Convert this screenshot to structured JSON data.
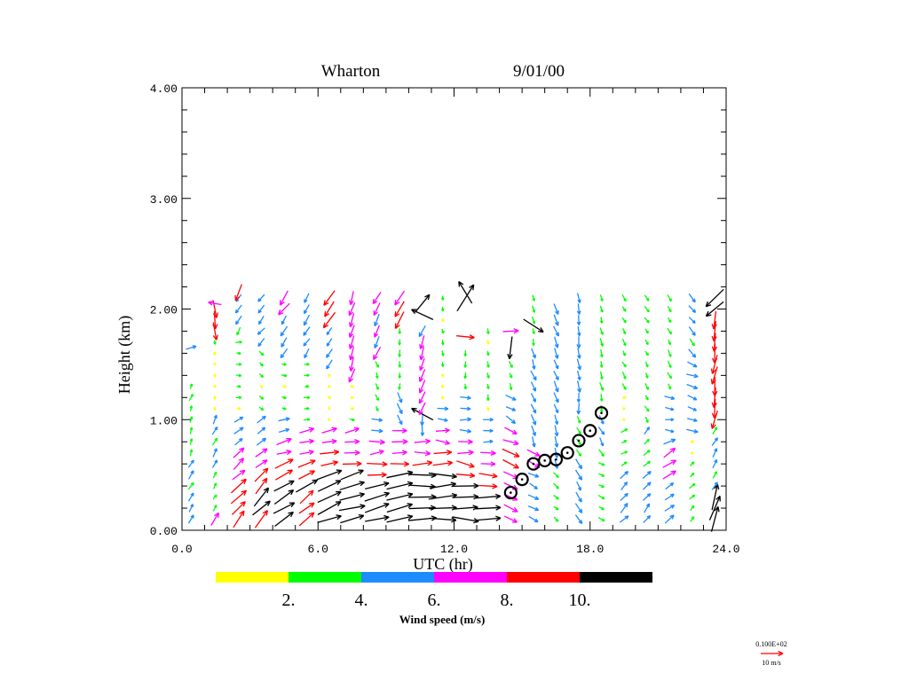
{
  "chart_data": {
    "type": "vector",
    "title": "Wharton",
    "date": "9/01/00",
    "xlabel": "UTC (hr)",
    "ylabel": "Height (km)",
    "xlim": [
      0,
      24
    ],
    "ylim": [
      0,
      4
    ],
    "xticks": [
      "0.0",
      "6.0",
      "12.0",
      "18.0",
      "24.0"
    ],
    "xtick_values": [
      0,
      6,
      12,
      18,
      24
    ],
    "yticks": [
      "0.00",
      "1.00",
      "2.00",
      "3.00",
      "4.00"
    ],
    "ytick_values": [
      0,
      1,
      2,
      3,
      4
    ],
    "colorbar": {
      "label": "Wind speed (m/s)",
      "tick_labels": [
        "2.",
        "4.",
        "6.",
        "8.",
        "10."
      ],
      "thresholds": [
        0,
        2,
        4,
        6,
        8,
        10
      ],
      "colors": [
        "#ffff00",
        "#00ff00",
        "#1e8cff",
        "#ff00ff",
        "#ff0000",
        "#000000"
      ]
    },
    "reference_vector": {
      "value_label": "0.100E+02",
      "units_label": "10 m/s",
      "speed": 10,
      "color": "#ff0000"
    },
    "profiles_format": "layers: [z_bottom_km, z_top_km, speed_m_s, direction_toward_deg]",
    "profiles": [
      {
        "t": 0.4,
        "layers": [
          [
            0.1,
            0.6,
            4.5,
            30
          ],
          [
            0.7,
            1.35,
            3,
            20
          ],
          [
            1.65,
            1.65,
            4.5,
            80
          ]
        ]
      },
      {
        "t": 1.45,
        "layers": [
          [
            0.1,
            0.1,
            7,
            30
          ],
          [
            0.2,
            0.5,
            3,
            30
          ],
          [
            0.6,
            1.0,
            4.5,
            25
          ],
          [
            1.1,
            1.7,
            1.5,
            180
          ],
          [
            1.8,
            2.0,
            8.5,
            170
          ],
          [
            2.05,
            2.05,
            6.5,
            285
          ]
        ]
      },
      {
        "t": 2.5,
        "layers": [
          [
            0.1,
            0.4,
            9,
            40
          ],
          [
            0.5,
            0.7,
            7,
            50
          ],
          [
            0.8,
            1.0,
            5,
            50
          ],
          [
            1.1,
            1.7,
            2.5,
            90
          ],
          [
            1.8,
            2.1,
            4.5,
            210
          ],
          [
            2.15,
            2.15,
            8.5,
            210
          ]
        ]
      },
      {
        "t": 3.5,
        "layers": [
          [
            0.1,
            0.3,
            10.5,
            45
          ],
          [
            0.4,
            0.5,
            9,
            45
          ],
          [
            0.6,
            0.7,
            7,
            60
          ],
          [
            0.8,
            1.0,
            5,
            60
          ],
          [
            1.1,
            1.6,
            2.5,
            130
          ],
          [
            1.7,
            2.15,
            5,
            220
          ]
        ]
      },
      {
        "t": 4.5,
        "layers": [
          [
            0.1,
            0.4,
            11,
            55
          ],
          [
            0.5,
            0.6,
            9,
            60
          ],
          [
            0.7,
            0.8,
            7,
            70
          ],
          [
            0.9,
            1.0,
            5,
            70
          ],
          [
            1.1,
            1.5,
            2,
            100
          ],
          [
            1.6,
            1.9,
            5,
            210
          ],
          [
            2.0,
            2.15,
            7.5,
            215
          ]
        ]
      },
      {
        "t": 5.5,
        "layers": [
          [
            0.1,
            0.3,
            9,
            55
          ],
          [
            0.4,
            0.4,
            11,
            60
          ],
          [
            0.5,
            0.6,
            9,
            65
          ],
          [
            0.7,
            0.9,
            7,
            75
          ],
          [
            1.0,
            1.5,
            2.5,
            90
          ],
          [
            1.6,
            2.15,
            5,
            215
          ]
        ]
      },
      {
        "t": 6.5,
        "layers": [
          [
            0.1,
            0.5,
            12,
            70
          ],
          [
            0.6,
            0.7,
            8.5,
            75
          ],
          [
            0.8,
            0.9,
            7,
            75
          ],
          [
            1.0,
            1.4,
            1.5,
            100
          ],
          [
            1.5,
            1.8,
            4.5,
            210
          ],
          [
            1.9,
            2.15,
            8.5,
            215
          ]
        ]
      },
      {
        "t": 7.5,
        "layers": [
          [
            0.1,
            0.5,
            12,
            75
          ],
          [
            0.6,
            0.6,
            9,
            80
          ],
          [
            0.7,
            0.9,
            7,
            80
          ],
          [
            1.0,
            1.3,
            2,
            110
          ],
          [
            1.4,
            2.15,
            6.5,
            200
          ]
        ]
      },
      {
        "t": 8.6,
        "layers": [
          [
            0.1,
            0.4,
            12,
            80
          ],
          [
            0.5,
            0.6,
            9,
            85
          ],
          [
            0.7,
            0.8,
            7,
            85
          ],
          [
            0.9,
            1.0,
            5,
            90
          ],
          [
            1.1,
            1.5,
            3,
            160
          ],
          [
            1.6,
            2.15,
            6.5,
            205
          ]
        ]
      },
      {
        "t": 9.6,
        "layers": [
          [
            0.1,
            0.5,
            13,
            80
          ],
          [
            0.6,
            0.6,
            9,
            85
          ],
          [
            0.7,
            0.9,
            7,
            85
          ],
          [
            1.0,
            1.2,
            5,
            160
          ],
          [
            1.3,
            1.8,
            3,
            180
          ],
          [
            1.9,
            2.15,
            8.5,
            215
          ]
        ]
      },
      {
        "t": 10.6,
        "layers": [
          [
            0.1,
            0.5,
            13,
            88
          ],
          [
            0.6,
            0.6,
            9,
            90
          ],
          [
            0.7,
            0.8,
            7,
            90
          ],
          [
            0.9,
            1.0,
            5,
            180
          ],
          [
            1.05,
            1.05,
            11,
            300
          ],
          [
            1.1,
            1.8,
            6.5,
            200
          ],
          [
            1.95,
            1.95,
            11,
            300
          ],
          [
            2.05,
            2.05,
            11,
            30
          ]
        ]
      },
      {
        "t": 11.5,
        "layers": [
          [
            0.1,
            0.5,
            13,
            90
          ],
          [
            0.6,
            0.7,
            9,
            92
          ],
          [
            0.8,
            0.9,
            7,
            95
          ],
          [
            1.0,
            1.1,
            5,
            100
          ],
          [
            1.2,
            2.15,
            2,
            170
          ]
        ]
      },
      {
        "t": 12.5,
        "layers": [
          [
            0.1,
            0.4,
            12,
            92
          ],
          [
            0.5,
            0.6,
            9,
            100
          ],
          [
            0.7,
            0.8,
            7,
            95
          ],
          [
            0.9,
            1.2,
            5,
            90
          ],
          [
            1.3,
            1.6,
            2.5,
            180
          ],
          [
            1.75,
            1.75,
            9,
            90
          ],
          [
            2.1,
            2.1,
            14,
            40
          ],
          [
            2.15,
            2.15,
            12,
            330
          ]
        ]
      },
      {
        "t": 13.5,
        "layers": [
          [
            0.1,
            0.3,
            12,
            92
          ],
          [
            0.4,
            0.5,
            9,
            100
          ],
          [
            0.6,
            0.7,
            7,
            100
          ],
          [
            0.8,
            1.0,
            5,
            90
          ],
          [
            1.1,
            1.8,
            2.5,
            170
          ]
        ]
      },
      {
        "t": 14.5,
        "layers": [
          [
            0.1,
            0.5,
            7,
            110
          ],
          [
            0.6,
            0.7,
            8.5,
            110
          ],
          [
            0.8,
            0.9,
            7,
            115
          ],
          [
            1.0,
            1.2,
            5,
            120
          ],
          [
            1.3,
            1.55,
            3,
            160
          ],
          [
            1.65,
            1.65,
            11,
            180
          ],
          [
            1.8,
            1.8,
            7,
            80
          ]
        ]
      },
      {
        "t": 15.5,
        "layers": [
          [
            0.1,
            0.5,
            5,
            120
          ],
          [
            0.6,
            0.7,
            7,
            120
          ],
          [
            0.8,
            1.6,
            5,
            160
          ],
          [
            1.7,
            2.15,
            3,
            170
          ],
          [
            1.85,
            1.85,
            11,
            120
          ]
        ]
      },
      {
        "t": 16.5,
        "layers": [
          [
            0.1,
            0.5,
            3,
            130
          ],
          [
            0.6,
            2.0,
            5,
            160
          ]
        ]
      },
      {
        "t": 17.5,
        "layers": [
          [
            0.1,
            0.6,
            5,
            150
          ],
          [
            0.7,
            1.0,
            3.5,
            150
          ],
          [
            1.1,
            2.15,
            5,
            175
          ]
        ]
      },
      {
        "t": 18.5,
        "layers": [
          [
            0.1,
            0.6,
            3,
            120
          ],
          [
            0.7,
            1.0,
            4.5,
            150
          ],
          [
            1.1,
            2.15,
            3.5,
            165
          ]
        ]
      },
      {
        "t": 19.5,
        "layers": [
          [
            0.1,
            0.5,
            5,
            45
          ],
          [
            0.6,
            0.9,
            3,
            60
          ],
          [
            1.0,
            1.2,
            1.5,
            90
          ],
          [
            1.3,
            2.15,
            3,
            150
          ]
        ]
      },
      {
        "t": 20.5,
        "layers": [
          [
            0.1,
            0.5,
            5,
            40
          ],
          [
            0.6,
            0.9,
            3.5,
            45
          ],
          [
            1.0,
            2.15,
            3,
            150
          ]
        ]
      },
      {
        "t": 21.5,
        "layers": [
          [
            0.1,
            0.4,
            5,
            50
          ],
          [
            0.5,
            0.8,
            6.5,
            60
          ],
          [
            0.9,
            1.2,
            4.5,
            100
          ],
          [
            1.3,
            2.15,
            3,
            150
          ]
        ]
      },
      {
        "t": 22.5,
        "layers": [
          [
            0.1,
            0.6,
            3,
            45
          ],
          [
            0.7,
            0.8,
            1.5,
            60
          ],
          [
            0.9,
            1.5,
            5,
            110
          ],
          [
            1.6,
            2.15,
            4.5,
            140
          ]
        ]
      },
      {
        "t": 23.5,
        "layers": [
          [
            0.1,
            0.3,
            12,
            20
          ],
          [
            0.4,
            0.9,
            4,
            30
          ],
          [
            1.0,
            1.9,
            9,
            190
          ],
          [
            2.0,
            2.15,
            11,
            230
          ]
        ]
      }
    ],
    "boundary_layer_markers": [
      [
        14.5,
        0.34
      ],
      [
        15.0,
        0.46
      ],
      [
        15.5,
        0.6
      ],
      [
        16.0,
        0.63
      ],
      [
        16.5,
        0.64
      ],
      [
        17.0,
        0.7
      ],
      [
        17.5,
        0.81
      ],
      [
        18.0,
        0.9
      ],
      [
        18.5,
        1.06
      ]
    ]
  }
}
